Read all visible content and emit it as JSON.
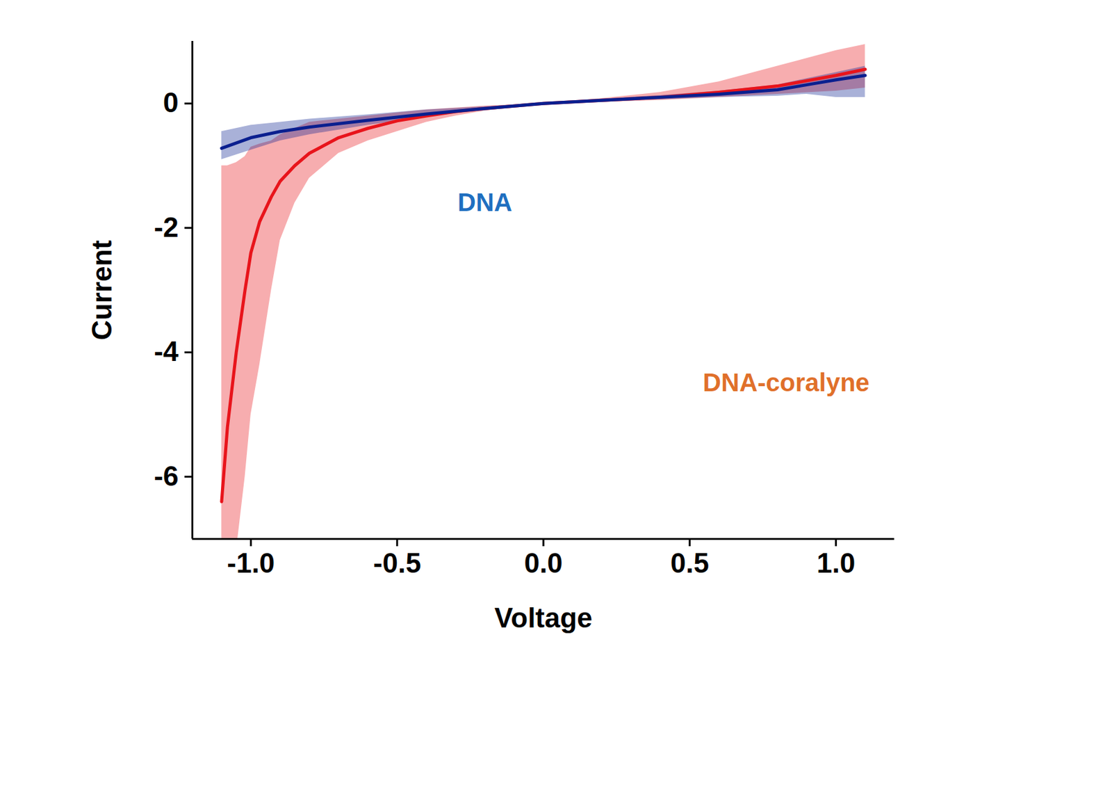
{
  "chart_data": {
    "type": "line",
    "x_label": "Voltage",
    "y_label": "Current",
    "xlim": [
      -1.2,
      1.2
    ],
    "ylim": [
      -7,
      1
    ],
    "xticks": [
      {
        "value": -1.0,
        "label": "-1.0"
      },
      -0.5,
      {
        "value": 0.0,
        "label": "0.0"
      },
      0.5,
      {
        "value": 1.0,
        "label": "1.0"
      }
    ],
    "yticks": [
      -6,
      -4,
      -2,
      0
    ],
    "grid": false,
    "series": [
      {
        "name": "DNA-coralyne",
        "color": "#e8141b",
        "x": [
          -1.1,
          -1.08,
          -1.05,
          -1.02,
          -1.0,
          -0.97,
          -0.93,
          -0.9,
          -0.85,
          -0.8,
          -0.7,
          -0.6,
          -0.5,
          -0.4,
          -0.3,
          -0.2,
          -0.1,
          0.0,
          0.2,
          0.4,
          0.6,
          0.8,
          1.0,
          1.1
        ],
        "values": [
          -6.4,
          -5.2,
          -4.0,
          -3.0,
          -2.4,
          -1.9,
          -1.5,
          -1.25,
          -1.0,
          -0.8,
          -0.55,
          -0.4,
          -0.28,
          -0.2,
          -0.13,
          -0.08,
          -0.04,
          0.0,
          0.05,
          0.1,
          0.18,
          0.28,
          0.45,
          0.55
        ],
        "lower": [
          -7.5,
          -7.5,
          -7.2,
          -6.0,
          -5.0,
          -4.2,
          -3.0,
          -2.2,
          -1.6,
          -1.2,
          -0.8,
          -0.6,
          -0.45,
          -0.3,
          -0.2,
          -0.12,
          -0.06,
          0.0,
          0.02,
          0.05,
          0.1,
          0.15,
          0.2,
          0.25
        ],
        "upper": [
          -1.0,
          -1.0,
          -0.95,
          -0.85,
          -0.7,
          -0.65,
          -0.6,
          -0.5,
          -0.4,
          -0.3,
          -0.25,
          -0.2,
          -0.15,
          -0.1,
          -0.07,
          -0.04,
          -0.02,
          0.0,
          0.08,
          0.18,
          0.35,
          0.6,
          0.85,
          0.95
        ]
      },
      {
        "name": "DNA",
        "color": "#0a1f8f",
        "x": [
          -1.1,
          -1.0,
          -0.9,
          -0.8,
          -0.6,
          -0.4,
          -0.2,
          0.0,
          0.2,
          0.4,
          0.6,
          0.8,
          0.9,
          1.0,
          1.1
        ],
        "values": [
          -0.72,
          -0.55,
          -0.45,
          -0.38,
          -0.27,
          -0.17,
          -0.08,
          0.0,
          0.05,
          0.1,
          0.15,
          0.22,
          0.3,
          0.38,
          0.45
        ],
        "lower": [
          -0.9,
          -0.75,
          -0.6,
          -0.5,
          -0.35,
          -0.22,
          -0.1,
          0.0,
          0.03,
          0.06,
          0.1,
          0.12,
          0.15,
          0.1,
          0.1
        ],
        "upper": [
          -0.45,
          -0.35,
          -0.3,
          -0.25,
          -0.18,
          -0.1,
          -0.05,
          0.0,
          0.07,
          0.13,
          0.2,
          0.3,
          0.4,
          0.5,
          0.6
        ]
      }
    ],
    "annotations": [
      {
        "text": "DNA",
        "x": -0.2,
        "y": -1.6,
        "color": "#1f6fc0"
      },
      {
        "text": "DNA-coralyne",
        "x": 0.83,
        "y": -4.5,
        "color": "#e0702a"
      }
    ]
  }
}
